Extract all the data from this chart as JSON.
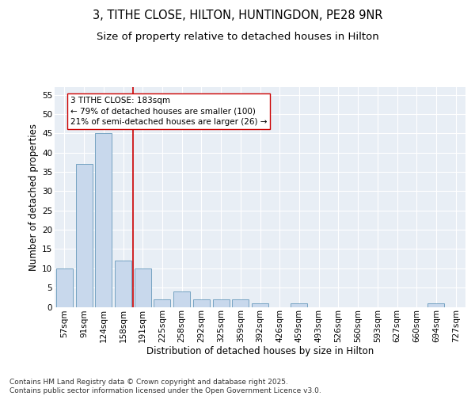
{
  "title1": "3, TITHE CLOSE, HILTON, HUNTINGDON, PE28 9NR",
  "title2": "Size of property relative to detached houses in Hilton",
  "xlabel": "Distribution of detached houses by size in Hilton",
  "ylabel": "Number of detached properties",
  "categories": [
    "57sqm",
    "91sqm",
    "124sqm",
    "158sqm",
    "191sqm",
    "225sqm",
    "258sqm",
    "292sqm",
    "325sqm",
    "359sqm",
    "392sqm",
    "426sqm",
    "459sqm",
    "493sqm",
    "526sqm",
    "560sqm",
    "593sqm",
    "627sqm",
    "660sqm",
    "694sqm",
    "727sqm"
  ],
  "values": [
    10,
    37,
    45,
    12,
    10,
    2,
    4,
    2,
    2,
    2,
    1,
    0,
    1,
    0,
    0,
    0,
    0,
    0,
    0,
    1,
    0
  ],
  "bar_color": "#c8d8ec",
  "bar_edge_color": "#6699bb",
  "vline_color": "#cc0000",
  "annotation_text": "3 TITHE CLOSE: 183sqm\n← 79% of detached houses are smaller (100)\n21% of semi-detached houses are larger (26) →",
  "annotation_box_color": "#ffffff",
  "annotation_box_edge_color": "#cc0000",
  "ylim": [
    0,
    57
  ],
  "yticks": [
    0,
    5,
    10,
    15,
    20,
    25,
    30,
    35,
    40,
    45,
    50,
    55
  ],
  "bg_color": "#e8eef5",
  "footer_text": "Contains HM Land Registry data © Crown copyright and database right 2025.\nContains public sector information licensed under the Open Government Licence v3.0.",
  "title_fontsize": 10.5,
  "subtitle_fontsize": 9.5,
  "axis_label_fontsize": 8.5,
  "tick_fontsize": 7.5,
  "annotation_fontsize": 7.5,
  "footer_fontsize": 6.5
}
